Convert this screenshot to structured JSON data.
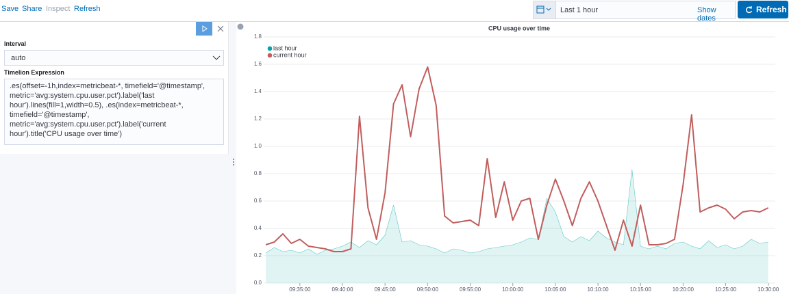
{
  "toolbar": {
    "links": [
      "Save",
      "Share",
      "Inspect",
      "Refresh"
    ]
  },
  "date_picker": {
    "range": "Last 1 hour",
    "show_dates": "Show dates",
    "button": "Refresh"
  },
  "editor": {
    "interval_label": "Interval",
    "interval_value": "auto",
    "expression_label": "Timelion Expression",
    "expression": ".es(offset=-1h,index=metricbeat-*, timefield='@timestamp', metric='avg:system.cpu.user.pct').label('last hour').lines(fill=1,width=0.5), .es(index=metricbeat-*, timefield='@timestamp', metric='avg:system.cpu.user.pct').label('current hour').title('CPU usage over time')"
  },
  "chart_data": {
    "type": "line",
    "title": "CPU usage over time",
    "x": [
      "09:31:00",
      "09:32:00",
      "09:33:00",
      "09:34:00",
      "09:35:00",
      "09:36:00",
      "09:37:00",
      "09:38:00",
      "09:39:00",
      "09:40:00",
      "09:41:00",
      "09:42:00",
      "09:43:00",
      "09:44:00",
      "09:45:00",
      "09:46:00",
      "09:47:00",
      "09:48:00",
      "09:49:00",
      "09:50:00",
      "09:51:00",
      "09:52:00",
      "09:53:00",
      "09:54:00",
      "09:55:00",
      "09:56:00",
      "09:57:00",
      "09:58:00",
      "09:59:00",
      "10:00:00",
      "10:01:00",
      "10:02:00",
      "10:03:00",
      "10:04:00",
      "10:05:00",
      "10:06:00",
      "10:07:00",
      "10:08:00",
      "10:09:00",
      "10:10:00",
      "10:11:00",
      "10:12:00",
      "10:13:00",
      "10:14:00",
      "10:15:00",
      "10:16:00",
      "10:17:00",
      "10:18:00",
      "10:19:00",
      "10:20:00",
      "10:21:00",
      "10:22:00",
      "10:23:00",
      "10:24:00",
      "10:25:00",
      "10:26:00",
      "10:27:00",
      "10:28:00",
      "10:29:00",
      "10:30:00"
    ],
    "series": [
      {
        "name": "last hour",
        "color": "#01a4a4",
        "fill": true,
        "values": [
          0.22,
          0.26,
          0.23,
          0.24,
          0.22,
          0.25,
          0.21,
          0.24,
          0.25,
          0.27,
          0.3,
          0.26,
          0.31,
          0.28,
          0.35,
          0.57,
          0.3,
          0.31,
          0.28,
          0.27,
          0.25,
          0.22,
          0.25,
          0.24,
          0.22,
          0.23,
          0.25,
          0.26,
          0.27,
          0.28,
          0.3,
          0.33,
          0.32,
          0.62,
          0.52,
          0.34,
          0.3,
          0.34,
          0.31,
          0.38,
          0.33,
          0.3,
          0.28,
          0.83,
          0.27,
          0.25,
          0.27,
          0.25,
          0.29,
          0.3,
          0.27,
          0.25,
          0.31,
          0.26,
          0.28,
          0.25,
          0.27,
          0.32,
          0.29,
          0.3
        ]
      },
      {
        "name": "current hour",
        "color": "#c15d5d",
        "fill": false,
        "values": [
          0.28,
          0.3,
          0.36,
          0.29,
          0.32,
          0.27,
          0.26,
          0.25,
          0.23,
          0.23,
          0.25,
          1.22,
          0.55,
          0.32,
          0.66,
          1.31,
          1.45,
          1.07,
          1.42,
          1.58,
          1.3,
          0.49,
          0.44,
          0.45,
          0.46,
          0.42,
          0.91,
          0.48,
          0.74,
          0.46,
          0.6,
          0.62,
          0.32,
          0.57,
          0.76,
          0.6,
          0.42,
          0.62,
          0.74,
          0.6,
          0.42,
          0.24,
          0.46,
          0.27,
          0.57,
          0.28,
          0.28,
          0.29,
          0.32,
          0.72,
          1.23,
          0.52,
          0.55,
          0.57,
          0.54,
          0.47,
          0.52,
          0.53,
          0.52,
          0.55
        ]
      }
    ],
    "xlim": [
      "09:30:45",
      "10:30:40"
    ],
    "xticks": [
      "09:35:00",
      "09:40:00",
      "09:45:00",
      "09:50:00",
      "09:55:00",
      "10:00:00",
      "10:05:00",
      "10:10:00",
      "10:15:00",
      "10:20:00",
      "10:25:00",
      "10:30:00"
    ],
    "ylim": [
      0,
      1.8
    ],
    "yticks": [
      {
        "value": 0,
        "label": "0.0"
      },
      0.2,
      0.4,
      0.6,
      0.8,
      {
        "value": 1,
        "label": "1.0"
      },
      1.2,
      1.4,
      1.6,
      1.8
    ],
    "grid": true,
    "legend": "top-left"
  }
}
